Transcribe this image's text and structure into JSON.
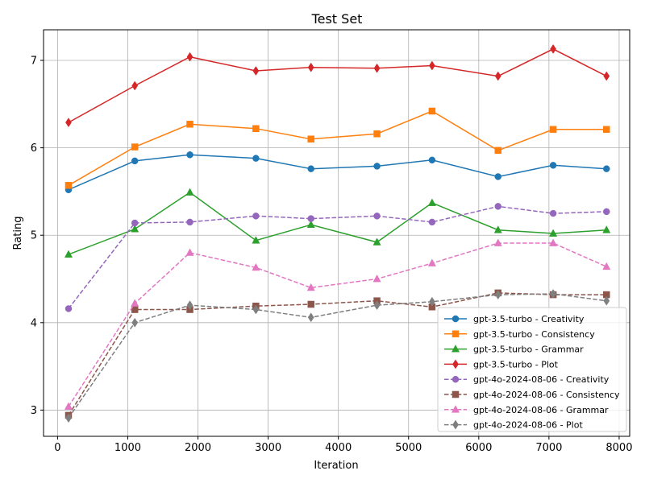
{
  "chart_data": {
    "type": "line",
    "title": "Test Set",
    "xlabel": "Iteration",
    "ylabel": "Rating",
    "xlim": [
      -200,
      8150
    ],
    "ylim": [
      2.7,
      7.35
    ],
    "xticks": [
      0,
      1000,
      2000,
      3000,
      4000,
      5000,
      6000,
      7000,
      8000
    ],
    "yticks": [
      3,
      4,
      5,
      6,
      7
    ],
    "grid": true,
    "legend_position": "bottom-right",
    "x": [
      156,
      1100,
      1885,
      2825,
      3610,
      4550,
      5335,
      6275,
      7060,
      7820
    ],
    "series": [
      {
        "name": "gpt-3.5-turbo - Creativity",
        "color": "#1f77b4",
        "marker": "circle",
        "dash": "solid",
        "values": [
          5.52,
          5.85,
          5.92,
          5.88,
          5.76,
          5.79,
          5.86,
          5.67,
          5.8,
          5.76
        ]
      },
      {
        "name": "gpt-3.5-turbo - Consistency",
        "color": "#ff7f0e",
        "marker": "square",
        "dash": "solid",
        "values": [
          5.57,
          6.01,
          6.27,
          6.22,
          6.1,
          6.16,
          6.42,
          5.97,
          6.21,
          6.21
        ]
      },
      {
        "name": "gpt-3.5-turbo - Grammar",
        "color": "#2ca02c",
        "marker": "triangle",
        "dash": "solid",
        "values": [
          4.78,
          5.07,
          5.49,
          4.94,
          5.12,
          4.92,
          5.37,
          5.06,
          5.02,
          5.06
        ]
      },
      {
        "name": "gpt-3.5-turbo - Plot",
        "color": "#d62728",
        "marker": "diamond",
        "dash": "solid",
        "values": [
          6.29,
          6.71,
          7.04,
          6.88,
          6.92,
          6.91,
          6.94,
          6.82,
          7.13,
          6.82
        ]
      },
      {
        "name": "gpt-4o-2024-08-06 - Creativity",
        "color": "#9467bd",
        "marker": "circle",
        "dash": "dashed",
        "values": [
          4.16,
          5.14,
          5.15,
          5.22,
          5.19,
          5.22,
          5.15,
          5.33,
          5.25,
          5.27
        ]
      },
      {
        "name": "gpt-4o-2024-08-06 - Consistency",
        "color": "#8c564b",
        "marker": "square",
        "dash": "dashed",
        "values": [
          2.94,
          4.15,
          4.15,
          4.19,
          4.21,
          4.25,
          4.18,
          4.34,
          4.32,
          4.32
        ]
      },
      {
        "name": "gpt-4o-2024-08-06 - Grammar",
        "color": "#e377c2",
        "marker": "triangle",
        "dash": "dashed",
        "values": [
          3.04,
          4.22,
          4.8,
          4.63,
          4.4,
          4.5,
          4.68,
          4.91,
          4.91,
          4.64
        ]
      },
      {
        "name": "gpt-4o-2024-08-06 - Plot",
        "color": "#7f7f7f",
        "marker": "diamond",
        "dash": "dashed",
        "values": [
          2.91,
          4.0,
          4.2,
          4.15,
          4.06,
          4.2,
          4.24,
          4.32,
          4.33,
          4.25
        ]
      }
    ]
  }
}
